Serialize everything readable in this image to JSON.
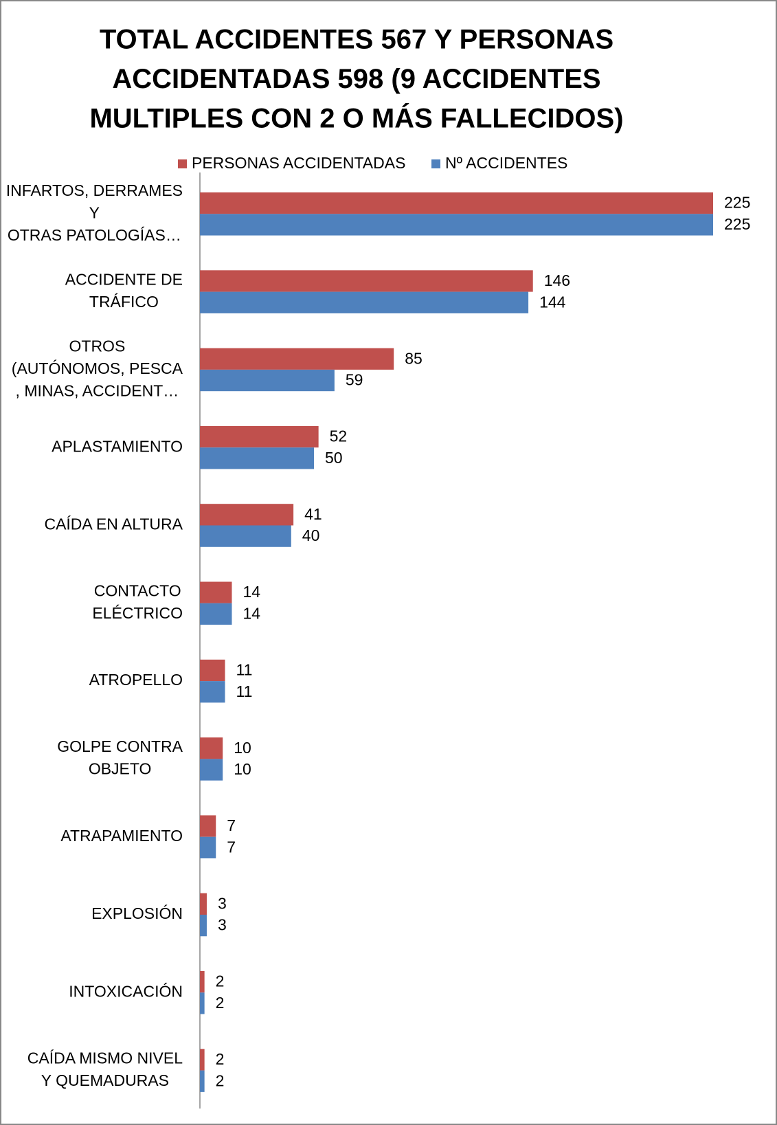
{
  "chart_data": {
    "type": "hbar",
    "title": [
      "TOTAL ACCIDENTES 567 Y PERSONAS",
      "ACCIDENTADAS 598 (9 ACCIDENTES",
      "MULTIPLES CON 2 O MÁS FALLECIDOS)"
    ],
    "categories": [
      [
        "INFARTOS, DERRAMES",
        "Y",
        "OTRAS PATOLOGÍAS…"
      ],
      [
        "ACCIDENTE DE",
        "TRÁFICO"
      ],
      [
        "OTROS",
        "(AUTÓNOMOS, PESCA",
        ", MINAS,  ACCIDENT…"
      ],
      [
        "APLASTAMIENTO"
      ],
      [
        "CAÍDA EN ALTURA"
      ],
      [
        "CONTACTO",
        "ELÉCTRICO"
      ],
      [
        "ATROPELLO"
      ],
      [
        "GOLPE CONTRA",
        "OBJETO"
      ],
      [
        "ATRAPAMIENTO"
      ],
      [
        "EXPLOSIÓN"
      ],
      [
        "INTOXICACIÓN"
      ],
      [
        "CAÍDA MISMO NIVEL",
        "Y QUEMADURAS"
      ]
    ],
    "series": [
      {
        "name": "PERSONAS ACCIDENTADAS",
        "color": "#c0504d",
        "values": [
          225,
          146,
          85,
          52,
          41,
          14,
          11,
          10,
          7,
          3,
          2,
          2
        ]
      },
      {
        "name": "Nº ACCIDENTES",
        "color": "#4f81bd",
        "values": [
          225,
          144,
          59,
          50,
          40,
          14,
          11,
          10,
          7,
          3,
          2,
          2
        ]
      }
    ],
    "xlim": [
      0,
      250
    ],
    "legend": "top"
  }
}
